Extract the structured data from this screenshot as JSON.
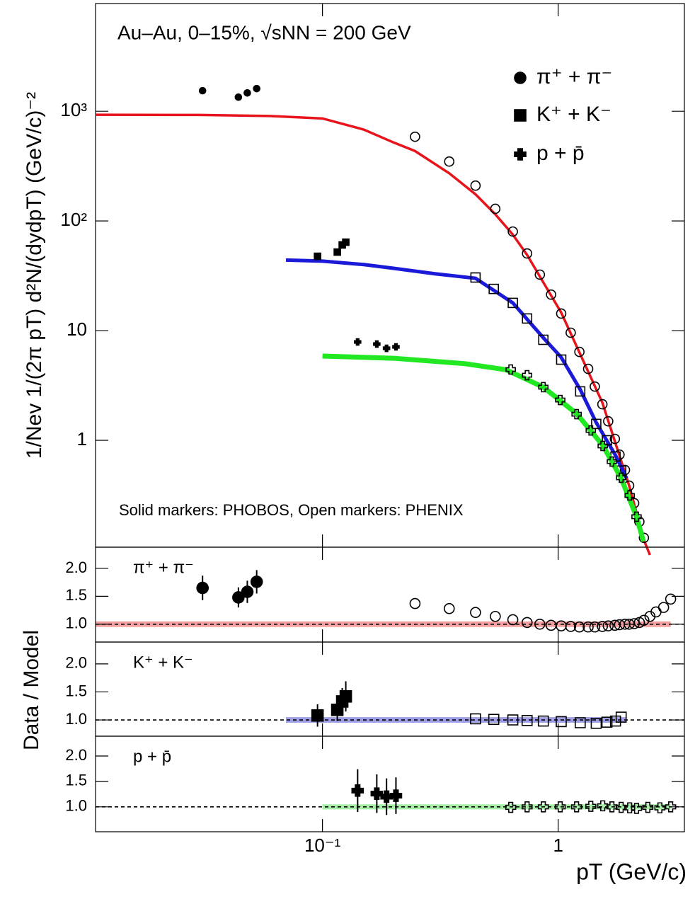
{
  "chart_data": [
    {
      "type": "scatter",
      "annotation": "Au–Au, 0–15%, √sNN = 200 GeV",
      "note": "Solid markers: PHOBOS, Open markers: PHENIX",
      "ylabel": "1/Nev 1/(2π pT) d²N/(dydpT) (GeV/c)⁻²",
      "xlabel": "pT (GeV/c)",
      "log_x": true,
      "log_y": true,
      "xlim": [
        0.0109,
        3.43
      ],
      "xticks": [
        {
          "value": 0.1,
          "label": "10⁻¹"
        },
        1
      ],
      "ylim": [
        0.106,
        9600
      ],
      "yticks": [
        1,
        10,
        {
          "value": 100,
          "label": "10²"
        },
        {
          "value": 1000,
          "label": "10³"
        }
      ],
      "series": [
        {
          "name": "π⁺ + π⁻",
          "marker": "circle",
          "color": "#e8141c",
          "phobos": {
            "x": [
              0.031,
              0.044,
              0.048,
              0.0526
            ],
            "values": [
              1540,
              1345,
              1470,
              1610
            ]
          },
          "phenix": {
            "x": [
              0.247,
              0.345,
              0.446,
              0.541,
              0.642,
              0.738,
              0.836,
              0.933,
              1.03,
              1.13,
              1.23,
              1.34,
              1.43,
              1.54,
              1.63,
              1.74,
              1.82,
              1.92,
              2.0,
              2.1,
              2.21,
              2.31
            ],
            "values": [
              586,
              348,
              210,
              129,
              80,
              50.5,
              32.4,
              21.3,
              14.3,
              9.57,
              6.4,
              4.48,
              3.09,
              2.13,
              1.49,
              1.03,
              0.74,
              0.536,
              0.386,
              0.267,
              0.181,
              0.129
            ]
          },
          "model": {
            "x": [
              0.0109,
              0.03,
              0.06,
              0.1,
              0.15,
              0.2,
              0.247,
              0.345,
              0.446,
              0.541,
              0.642,
              0.738,
              1.03,
              1.54,
              2.0,
              2.31,
              2.45
            ],
            "values": [
              930,
              925,
              905,
              860,
              680,
              520,
              434,
              272,
              175,
              115,
              75,
              49,
              14.6,
              2.2,
              0.386,
              0.123,
              0.09
            ]
          }
        },
        {
          "name": "K⁺ + K⁻",
          "marker": "square",
          "color": "#1a1ad8",
          "phobos": {
            "x": [
              0.0953,
              0.1156,
              0.1213,
              0.1256
            ],
            "values": [
              47.6,
              52,
              60.4,
              64
            ]
          },
          "phenix": {
            "x": [
              0.446,
              0.533,
              0.642,
              0.738,
              0.865,
              1.03,
              1.24,
              1.45,
              1.61,
              1.75,
              1.85
            ],
            "values": [
              30.5,
              24,
              17.9,
              12.9,
              8.25,
              5.44,
              2.79,
              1.41,
              1.0,
              0.711,
              0.529
            ]
          },
          "model": {
            "x": [
              0.07,
              0.1,
              0.15,
              0.2,
              0.3,
              0.446,
              0.642,
              0.865,
              1.03,
              1.24,
              1.45,
              1.75,
              1.95
            ],
            "values": [
              44,
              43,
              40,
              37,
              33,
              30,
              17.9,
              8.6,
              5.7,
              2.9,
              1.45,
              0.73,
              0.45
            ]
          }
        },
        {
          "name": "p + p̄",
          "marker": "cross",
          "color": "#22e822",
          "phobos": {
            "x": [
              0.141,
              0.17,
              0.187,
              0.205
            ],
            "values": [
              7.88,
              7.54,
              6.9,
              7.11
            ]
          },
          "phenix": {
            "x": [
              0.629,
              0.738,
              0.865,
              1.02,
              1.197,
              1.375,
              1.545,
              1.69,
              1.85,
              2.01,
              2.15
            ],
            "values": [
              4.42,
              3.92,
              3.05,
              2.33,
              1.73,
              1.23,
              0.888,
              0.64,
              0.455,
              0.314,
              0.201
            ]
          },
          "model": {
            "x": [
              0.1,
              0.2,
              0.4,
              0.6,
              0.865,
              1.197,
              1.545,
              1.85,
              2.15,
              2.3
            ],
            "values": [
              5.86,
              5.6,
              5.0,
              4.4,
              3.05,
              1.75,
              0.9,
              0.45,
              0.2,
              0.12
            ]
          }
        }
      ]
    },
    {
      "type": "ratio",
      "label": "π⁺ + π⁻",
      "ylabel": "Data / Model",
      "ylim": [
        0.68,
        2.38
      ],
      "yticks": [
        {
          "value": 1,
          "label": "1.0"
        },
        1.5,
        {
          "value": 2,
          "label": "2.0"
        }
      ],
      "ref": 1,
      "color": "#f4a0a0",
      "band": {
        "x": [
          0.0109,
          3.0
        ],
        "value": 1,
        "error": 0.05
      },
      "phobos": {
        "x": [
          0.031,
          0.044,
          0.048,
          0.0526
        ],
        "values": [
          1.65,
          1.48,
          1.58,
          1.76
        ],
        "errors": [
          0.22,
          0.18,
          0.2,
          0.21
        ]
      },
      "phenix": {
        "x": [
          0.247,
          0.345,
          0.446,
          0.541,
          0.642,
          0.738,
          0.836,
          0.933,
          1.03,
          1.13,
          1.23,
          1.34,
          1.43,
          1.54,
          1.63,
          1.74,
          1.82,
          1.92,
          2.0,
          2.1,
          2.21,
          2.31,
          2.45,
          2.6,
          2.8,
          3.0
        ],
        "values": [
          1.37,
          1.28,
          1.21,
          1.14,
          1.08,
          1.03,
          1.0,
          0.98,
          0.97,
          0.96,
          0.95,
          0.95,
          0.95,
          0.96,
          0.97,
          0.98,
          0.99,
          1.0,
          1.0,
          1.01,
          1.03,
          1.07,
          1.14,
          1.22,
          1.3,
          1.45
        ]
      }
    },
    {
      "type": "ratio",
      "label": "K⁺ + K⁻",
      "ylim": [
        0.71,
        2.39
      ],
      "yticks": [
        {
          "value": 1,
          "label": "1.0"
        },
        1.5,
        {
          "value": 2,
          "label": "2.0"
        }
      ],
      "ref": 1,
      "color": "#a0a0e6",
      "band": {
        "x": [
          0.07,
          1.95
        ],
        "value": 1,
        "error": 0.05
      },
      "phobos": {
        "x": [
          0.0953,
          0.1156,
          0.1213,
          0.1256
        ],
        "values": [
          1.08,
          1.18,
          1.33,
          1.42
        ],
        "errors": [
          0.2,
          0.2,
          0.24,
          0.27
        ]
      },
      "phenix": {
        "x": [
          0.446,
          0.533,
          0.642,
          0.738,
          0.865,
          1.03,
          1.24,
          1.45,
          1.61,
          1.75,
          1.85
        ],
        "values": [
          1.02,
          1.01,
          1.0,
          0.99,
          0.98,
          0.97,
          0.95,
          0.94,
          0.96,
          0.98,
          1.05
        ]
      }
    },
    {
      "type": "ratio",
      "label": "p + p̄",
      "ylim": [
        0.51,
        2.39
      ],
      "yticks": [
        {
          "value": 1,
          "label": "1.0"
        },
        1.5,
        {
          "value": 2,
          "label": "2.0"
        }
      ],
      "ref": 1,
      "color": "#a6eea6",
      "band": {
        "x": [
          0.1,
          3.0
        ],
        "value": 1,
        "error": 0.05
      },
      "phobos": {
        "x": [
          0.141,
          0.17,
          0.187,
          0.205
        ],
        "values": [
          1.32,
          1.26,
          1.2,
          1.22
        ],
        "errors": [
          0.42,
          0.38,
          0.36,
          0.36
        ]
      },
      "phenix": {
        "x": [
          0.629,
          0.738,
          0.865,
          1.02,
          1.197,
          1.375,
          1.545,
          1.69,
          1.85,
          2.01,
          2.15,
          2.4,
          2.7,
          3.0
        ],
        "values": [
          0.99,
          1.0,
          1.0,
          1.0,
          1.0,
          1.01,
          1.02,
          1.0,
          0.99,
          0.98,
          0.97,
          0.99,
          0.98,
          1.0
        ]
      }
    }
  ]
}
